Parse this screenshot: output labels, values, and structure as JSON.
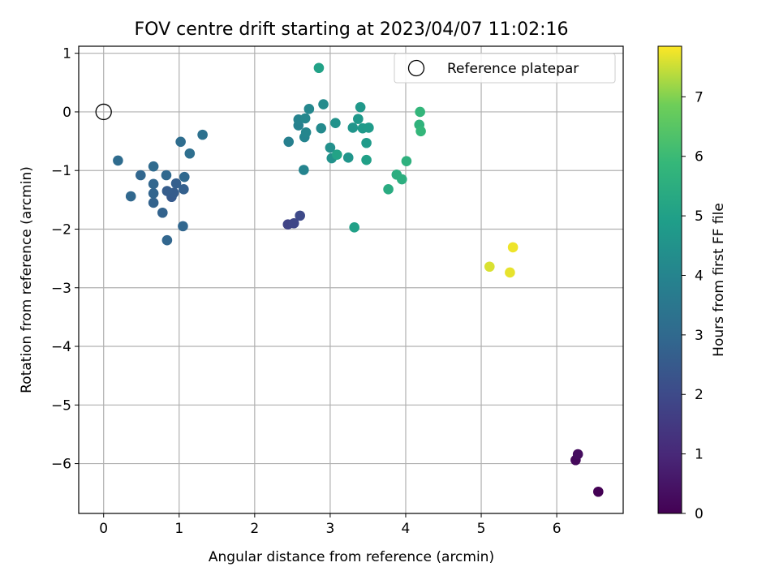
{
  "chart_data": {
    "type": "scatter",
    "title": "FOV centre drift starting at 2023/04/07 11:02:16",
    "xlabel": "Angular distance from reference (arcmin)",
    "ylabel": "Rotation from reference (arcmin)",
    "xlim": [
      -0.33,
      6.88
    ],
    "ylim": [
      -6.85,
      1.12
    ],
    "xticks": [
      0,
      1,
      2,
      3,
      4,
      5,
      6
    ],
    "yticks": [
      1,
      0,
      -1,
      -2,
      -3,
      -4,
      -5,
      -6
    ],
    "xtick_labels": [
      "0",
      "1",
      "2",
      "3",
      "4",
      "5",
      "6"
    ],
    "ytick_labels": [
      "1",
      "0",
      "−1",
      "−2",
      "−3",
      "−4",
      "−5",
      "−6"
    ],
    "grid": true,
    "legend": {
      "label": "Reference platepar",
      "placement": "top-right"
    },
    "reference_point": {
      "x": 0,
      "y": 0
    },
    "colorbar": {
      "label": "Hours from first FF file",
      "min": 0,
      "max": 7.85,
      "ticks": [
        0,
        1,
        2,
        3,
        4,
        5,
        6,
        7
      ],
      "colormap": "viridis"
    },
    "points": [
      {
        "x": 6.55,
        "y": -6.48,
        "c": 0.0
      },
      {
        "x": 6.25,
        "y": -5.94,
        "c": 0.2
      },
      {
        "x": 6.28,
        "y": -5.84,
        "c": 0.3
      },
      {
        "x": 2.44,
        "y": -1.92,
        "c": 1.8
      },
      {
        "x": 2.52,
        "y": -1.9,
        "c": 1.9
      },
      {
        "x": 2.6,
        "y": -1.77,
        "c": 2.0
      },
      {
        "x": 0.9,
        "y": -1.45,
        "c": 2.5
      },
      {
        "x": 0.93,
        "y": -1.38,
        "c": 2.55
      },
      {
        "x": 0.84,
        "y": -1.35,
        "c": 2.6
      },
      {
        "x": 0.96,
        "y": -1.22,
        "c": 2.65
      },
      {
        "x": 1.06,
        "y": -1.32,
        "c": 2.7
      },
      {
        "x": 0.78,
        "y": -1.72,
        "c": 2.8
      },
      {
        "x": 0.66,
        "y": -1.55,
        "c": 2.8
      },
      {
        "x": 0.66,
        "y": -1.39,
        "c": 2.85
      },
      {
        "x": 0.66,
        "y": -1.23,
        "c": 2.9
      },
      {
        "x": 0.84,
        "y": -2.19,
        "c": 2.9
      },
      {
        "x": 1.05,
        "y": -1.95,
        "c": 2.9
      },
      {
        "x": 0.49,
        "y": -1.08,
        "c": 2.9
      },
      {
        "x": 0.36,
        "y": -1.44,
        "c": 2.95
      },
      {
        "x": 0.83,
        "y": -1.08,
        "c": 3.0
      },
      {
        "x": 1.07,
        "y": -1.11,
        "c": 3.0
      },
      {
        "x": 0.66,
        "y": -0.93,
        "c": 3.05
      },
      {
        "x": 0.19,
        "y": -0.83,
        "c": 3.1
      },
      {
        "x": 1.02,
        "y": -0.51,
        "c": 3.15
      },
      {
        "x": 1.14,
        "y": -0.71,
        "c": 3.2
      },
      {
        "x": 1.31,
        "y": -0.39,
        "c": 3.3
      },
      {
        "x": 2.45,
        "y": -0.51,
        "c": 3.8
      },
      {
        "x": 2.58,
        "y": -0.23,
        "c": 3.9
      },
      {
        "x": 2.58,
        "y": -0.13,
        "c": 3.95
      },
      {
        "x": 2.65,
        "y": -0.99,
        "c": 4.0
      },
      {
        "x": 2.66,
        "y": -0.43,
        "c": 4.0
      },
      {
        "x": 2.68,
        "y": -0.35,
        "c": 4.05
      },
      {
        "x": 2.67,
        "y": -0.11,
        "c": 4.1
      },
      {
        "x": 2.72,
        "y": 0.05,
        "c": 4.1
      },
      {
        "x": 2.88,
        "y": -0.28,
        "c": 4.2
      },
      {
        "x": 2.91,
        "y": 0.13,
        "c": 4.25
      },
      {
        "x": 3.0,
        "y": -0.61,
        "c": 4.4
      },
      {
        "x": 3.02,
        "y": -0.79,
        "c": 4.5
      },
      {
        "x": 3.07,
        "y": -0.19,
        "c": 4.5
      },
      {
        "x": 3.24,
        "y": -0.78,
        "c": 4.6
      },
      {
        "x": 3.3,
        "y": -0.27,
        "c": 4.6
      },
      {
        "x": 3.37,
        "y": -0.12,
        "c": 4.7
      },
      {
        "x": 3.4,
        "y": 0.08,
        "c": 4.7
      },
      {
        "x": 3.43,
        "y": -0.28,
        "c": 4.75
      },
      {
        "x": 3.48,
        "y": -0.53,
        "c": 4.8
      },
      {
        "x": 3.51,
        "y": -0.27,
        "c": 4.8
      },
      {
        "x": 3.48,
        "y": -0.82,
        "c": 5.0
      },
      {
        "x": 3.32,
        "y": -1.97,
        "c": 5.0
      },
      {
        "x": 2.85,
        "y": 0.75,
        "c": 5.05
      },
      {
        "x": 3.09,
        "y": -0.73,
        "c": 5.1
      },
      {
        "x": 3.77,
        "y": -1.32,
        "c": 5.4
      },
      {
        "x": 3.88,
        "y": -1.07,
        "c": 5.5
      },
      {
        "x": 3.95,
        "y": -1.15,
        "c": 5.55
      },
      {
        "x": 4.01,
        "y": -0.84,
        "c": 5.6
      },
      {
        "x": 4.18,
        "y": -0.22,
        "c": 5.7
      },
      {
        "x": 4.19,
        "y": 0.0,
        "c": 5.8
      },
      {
        "x": 4.2,
        "y": -0.33,
        "c": 5.85
      },
      {
        "x": 5.11,
        "y": -2.64,
        "c": 7.6
      },
      {
        "x": 5.38,
        "y": -2.74,
        "c": 7.7
      },
      {
        "x": 5.42,
        "y": -2.31,
        "c": 7.75
      }
    ]
  }
}
